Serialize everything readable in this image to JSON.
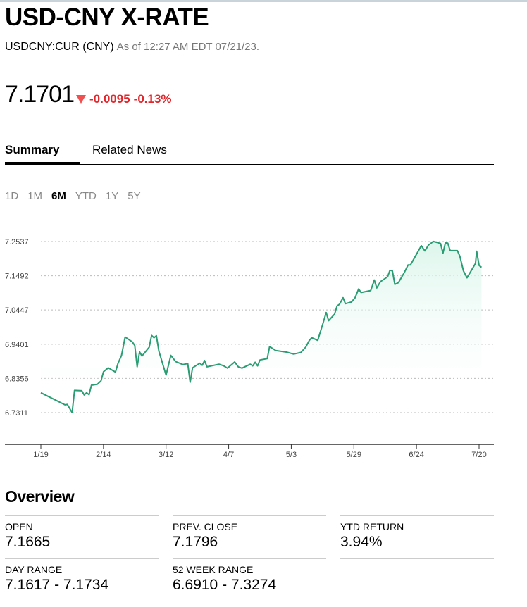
{
  "header": {
    "title": "USD-CNY X-RATE",
    "ticker": "USDCNY:CUR (CNY)",
    "as_of": "As of 12:27 AM EDT 07/21/23.",
    "price": "7.1701",
    "change": "-0.0095",
    "change_pct": "-0.13%",
    "down_color": "#e3262b"
  },
  "tabs": [
    {
      "label": "Summary"
    },
    {
      "label": "Related News"
    }
  ],
  "ranges": [
    {
      "label": "1D"
    },
    {
      "label": "1M"
    },
    {
      "label": "6M",
      "selected": true
    },
    {
      "label": "YTD"
    },
    {
      "label": "1Y"
    },
    {
      "label": "5Y"
    }
  ],
  "chart_data": {
    "type": "area",
    "title": "",
    "x_unit": "days since 1/19",
    "y_ticks": [
      "7.2537",
      "7.1492",
      "7.0447",
      "6.9401",
      "6.8356",
      "6.7311"
    ],
    "x_ticks": [
      {
        "label": "1/19",
        "day": 0
      },
      {
        "label": "2/14",
        "day": 26
      },
      {
        "label": "3/12",
        "day": 52
      },
      {
        "label": "4/7",
        "day": 78
      },
      {
        "label": "5/3",
        "day": 104
      },
      {
        "label": "5/29",
        "day": 130
      },
      {
        "label": "6/24",
        "day": 156
      },
      {
        "label": "7/20",
        "day": 182
      }
    ],
    "ylim": [
      6.6266,
      7.2537
    ],
    "xlim": [
      0,
      182
    ],
    "line_color": "#2a9d74",
    "grid": true,
    "points": [
      [
        0,
        6.792
      ],
      [
        10,
        6.755
      ],
      [
        11,
        6.756
      ],
      [
        13,
        6.731
      ],
      [
        14,
        6.799
      ],
      [
        17,
        6.798
      ],
      [
        18,
        6.785
      ],
      [
        19,
        6.792
      ],
      [
        20,
        6.786
      ],
      [
        21,
        6.815
      ],
      [
        23.5,
        6.818
      ],
      [
        25,
        6.828
      ],
      [
        26,
        6.856
      ],
      [
        28,
        6.868
      ],
      [
        31,
        6.855
      ],
      [
        32,
        6.881
      ],
      [
        33.5,
        6.906
      ],
      [
        35,
        6.962
      ],
      [
        38,
        6.947
      ],
      [
        39,
        6.936
      ],
      [
        40,
        6.871
      ],
      [
        41,
        6.917
      ],
      [
        42,
        6.904
      ],
      [
        45,
        6.931
      ],
      [
        46,
        6.967
      ],
      [
        47,
        6.96
      ],
      [
        48,
        6.966
      ],
      [
        49,
        6.919
      ],
      [
        52,
        6.846
      ],
      [
        54,
        6.906
      ],
      [
        56,
        6.887
      ],
      [
        59,
        6.878
      ],
      [
        61,
        6.881
      ],
      [
        62,
        6.824
      ],
      [
        63,
        6.868
      ],
      [
        66,
        6.882
      ],
      [
        67,
        6.876
      ],
      [
        68,
        6.89
      ],
      [
        69,
        6.871
      ],
      [
        74,
        6.879
      ],
      [
        76,
        6.874
      ],
      [
        77.5,
        6.867
      ],
      [
        80.5,
        6.886
      ],
      [
        82,
        6.871
      ],
      [
        83.5,
        6.867
      ],
      [
        87,
        6.879
      ],
      [
        88,
        6.874
      ],
      [
        89,
        6.885
      ],
      [
        90,
        6.874
      ],
      [
        91,
        6.892
      ],
      [
        94,
        6.896
      ],
      [
        95,
        6.933
      ],
      [
        97.5,
        6.921
      ],
      [
        102,
        6.916
      ],
      [
        105,
        6.91
      ],
      [
        108,
        6.915
      ],
      [
        110,
        6.931
      ],
      [
        111.5,
        6.952
      ],
      [
        112.5,
        6.96
      ],
      [
        115,
        6.952
      ],
      [
        117,
        7.0
      ],
      [
        118.5,
        7.037
      ],
      [
        119.5,
        7.012
      ],
      [
        122,
        7.032
      ],
      [
        123,
        7.057
      ],
      [
        124,
        7.062
      ],
      [
        125.5,
        7.082
      ],
      [
        126.5,
        7.064
      ],
      [
        129,
        7.069
      ],
      [
        130.5,
        7.082
      ],
      [
        132,
        7.109
      ],
      [
        133,
        7.098
      ],
      [
        137,
        7.104
      ],
      [
        138.5,
        7.136
      ],
      [
        139.5,
        7.112
      ],
      [
        141,
        7.131
      ],
      [
        144,
        7.146
      ],
      [
        145,
        7.166
      ],
      [
        146,
        7.164
      ],
      [
        147,
        7.123
      ],
      [
        148.5,
        7.128
      ],
      [
        151,
        7.16
      ],
      [
        152.5,
        7.182
      ],
      [
        153.5,
        7.182
      ],
      [
        158,
        7.241
      ],
      [
        159.5,
        7.225
      ],
      [
        161,
        7.243
      ],
      [
        163,
        7.254
      ],
      [
        166,
        7.248
      ],
      [
        167,
        7.218
      ],
      [
        168,
        7.25
      ],
      [
        169,
        7.249
      ],
      [
        170,
        7.226
      ],
      [
        173,
        7.226
      ],
      [
        174,
        7.209
      ],
      [
        175.5,
        7.164
      ],
      [
        177,
        7.143
      ],
      [
        180.5,
        7.187
      ],
      [
        181,
        7.224
      ],
      [
        182,
        7.181
      ],
      [
        183,
        7.175
      ]
    ]
  },
  "overview": {
    "title": "Overview",
    "stats": [
      {
        "label": "OPEN",
        "value": "7.1665"
      },
      {
        "label": "PREV. CLOSE",
        "value": "7.1796"
      },
      {
        "label": "YTD RETURN",
        "value": "3.94%"
      },
      {
        "label": "DAY RANGE",
        "value": "7.1617 - 7.1734"
      },
      {
        "label": "52 WEEK RANGE",
        "value": "6.6910 - 7.3274"
      }
    ]
  }
}
